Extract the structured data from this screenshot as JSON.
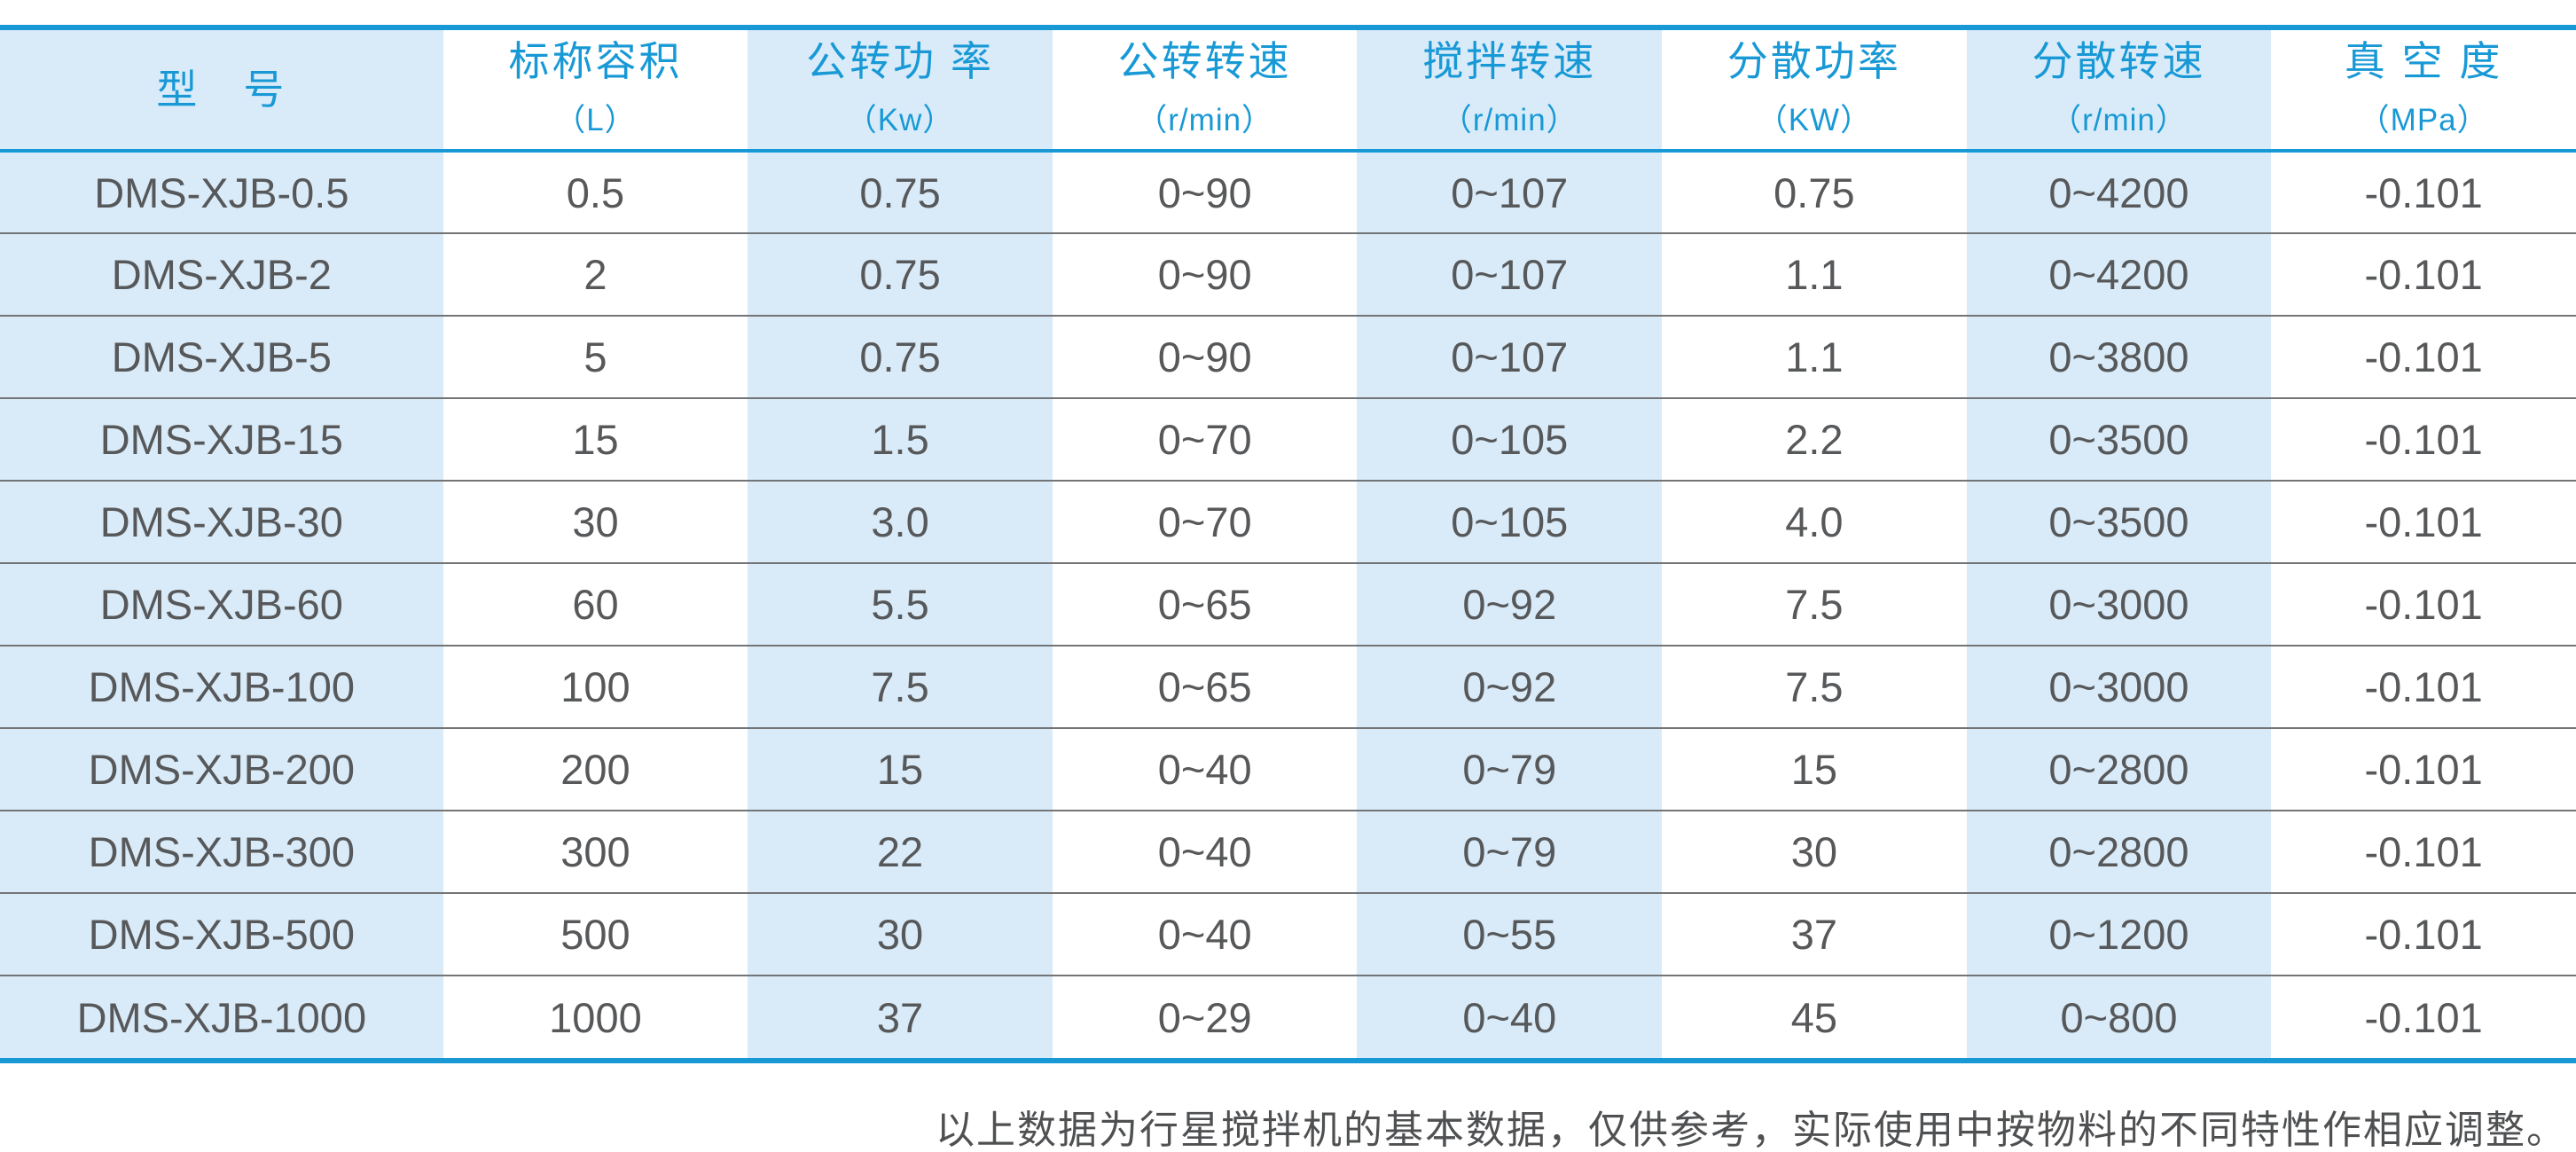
{
  "colors": {
    "accent_blue": "#1899d6",
    "stripe_blue": "#d9ebf8",
    "body_text": "#57585a",
    "row_divider": "#737476",
    "footer_text": "#4f5052"
  },
  "table": {
    "columns": [
      {
        "label": "型　号",
        "unit": ""
      },
      {
        "label": "标称容积",
        "unit": "（L）"
      },
      {
        "label": "公转功 率",
        "unit": "（Kw）"
      },
      {
        "label": "公转转速",
        "unit": "（r/min）"
      },
      {
        "label": "搅拌转速",
        "unit": "（r/min）"
      },
      {
        "label": "分散功率",
        "unit": "（KW）"
      },
      {
        "label": "分散转速",
        "unit": "（r/min）"
      },
      {
        "label": "真 空 度",
        "unit": "（MPa）"
      }
    ],
    "rows": [
      [
        "DMS-XJB-0.5",
        "0.5",
        "0.75",
        "0~90",
        "0~107",
        "0.75",
        "0~4200",
        "-0.101"
      ],
      [
        "DMS-XJB-2",
        "2",
        "0.75",
        "0~90",
        "0~107",
        "1.1",
        "0~4200",
        "-0.101"
      ],
      [
        "DMS-XJB-5",
        "5",
        "0.75",
        "0~90",
        "0~107",
        "1.1",
        "0~3800",
        "-0.101"
      ],
      [
        "DMS-XJB-15",
        "15",
        "1.5",
        "0~70",
        "0~105",
        "2.2",
        "0~3500",
        "-0.101"
      ],
      [
        "DMS-XJB-30",
        "30",
        "3.0",
        "0~70",
        "0~105",
        "4.0",
        "0~3500",
        "-0.101"
      ],
      [
        "DMS-XJB-60",
        "60",
        "5.5",
        "0~65",
        "0~92",
        "7.5",
        "0~3000",
        "-0.101"
      ],
      [
        "DMS-XJB-100",
        "100",
        "7.5",
        "0~65",
        "0~92",
        "7.5",
        "0~3000",
        "-0.101"
      ],
      [
        "DMS-XJB-200",
        "200",
        "15",
        "0~40",
        "0~79",
        "15",
        "0~2800",
        "-0.101"
      ],
      [
        "DMS-XJB-300",
        "300",
        "22",
        "0~40",
        "0~79",
        "30",
        "0~2800",
        "-0.101"
      ],
      [
        "DMS-XJB-500",
        "500",
        "30",
        "0~40",
        "0~55",
        "37",
        "0~1200",
        "-0.101"
      ],
      [
        "DMS-XJB-1000",
        "1000",
        "37",
        "0~29",
        "0~40",
        "45",
        "0~800",
        "-0.101"
      ]
    ]
  },
  "footer": {
    "note": "以上数据为行星搅拌机的基本数据，仅供参考，实际使用中按物料的不同特性作相应调整。"
  }
}
